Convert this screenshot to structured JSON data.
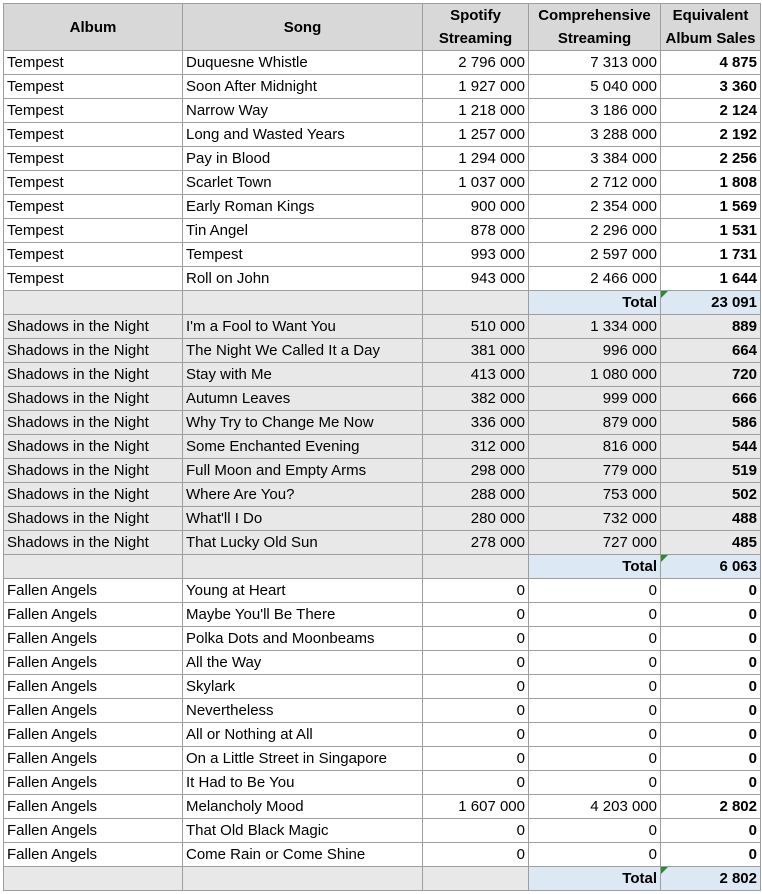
{
  "headers": {
    "album": "Album",
    "song": "Song",
    "spotify_line1": "Spotify",
    "spotify_line2": "Streaming",
    "comp_line1": "Comprehensive",
    "comp_line2": "Streaming",
    "eq_line1": "Equivalent",
    "eq_line2": "Album Sales"
  },
  "groups": [
    {
      "shaded": false,
      "rows": [
        {
          "album": "Tempest",
          "song": "Duquesne Whistle",
          "spotify": "2 796 000",
          "comprehensive": "7 313 000",
          "equivalent": "4 875"
        },
        {
          "album": "Tempest",
          "song": "Soon After Midnight",
          "spotify": "1 927 000",
          "comprehensive": "5 040 000",
          "equivalent": "3 360"
        },
        {
          "album": "Tempest",
          "song": "Narrow Way",
          "spotify": "1 218 000",
          "comprehensive": "3 186 000",
          "equivalent": "2 124"
        },
        {
          "album": "Tempest",
          "song": "Long and Wasted Years",
          "spotify": "1 257 000",
          "comprehensive": "3 288 000",
          "equivalent": "2 192"
        },
        {
          "album": "Tempest",
          "song": "Pay in Blood",
          "spotify": "1 294 000",
          "comprehensive": "3 384 000",
          "equivalent": "2 256"
        },
        {
          "album": "Tempest",
          "song": "Scarlet Town",
          "spotify": "1 037 000",
          "comprehensive": "2 712 000",
          "equivalent": "1 808"
        },
        {
          "album": "Tempest",
          "song": "Early Roman Kings",
          "spotify": "900 000",
          "comprehensive": "2 354 000",
          "equivalent": "1 569"
        },
        {
          "album": "Tempest",
          "song": "Tin Angel",
          "spotify": "878 000",
          "comprehensive": "2 296 000",
          "equivalent": "1 531"
        },
        {
          "album": "Tempest",
          "song": "Tempest",
          "spotify": "993 000",
          "comprehensive": "2 597 000",
          "equivalent": "1 731"
        },
        {
          "album": "Tempest",
          "song": "Roll on John",
          "spotify": "943 000",
          "comprehensive": "2 466 000",
          "equivalent": "1 644"
        }
      ],
      "total_label": "Total",
      "total_value": "23 091"
    },
    {
      "shaded": true,
      "rows": [
        {
          "album": "Shadows in the Night",
          "song": "I'm a Fool to Want You",
          "spotify": "510 000",
          "comprehensive": "1 334 000",
          "equivalent": "889"
        },
        {
          "album": "Shadows in the Night",
          "song": "The Night We Called It a Day",
          "spotify": "381 000",
          "comprehensive": "996 000",
          "equivalent": "664"
        },
        {
          "album": "Shadows in the Night",
          "song": "Stay with Me",
          "spotify": "413 000",
          "comprehensive": "1 080 000",
          "equivalent": "720"
        },
        {
          "album": "Shadows in the Night",
          "song": "Autumn Leaves",
          "spotify": "382 000",
          "comprehensive": "999 000",
          "equivalent": "666"
        },
        {
          "album": "Shadows in the Night",
          "song": "Why Try to Change Me Now",
          "spotify": "336 000",
          "comprehensive": "879 000",
          "equivalent": "586"
        },
        {
          "album": "Shadows in the Night",
          "song": "Some Enchanted Evening",
          "spotify": "312 000",
          "comprehensive": "816 000",
          "equivalent": "544"
        },
        {
          "album": "Shadows in the Night",
          "song": "Full Moon and Empty Arms",
          "spotify": "298 000",
          "comprehensive": "779 000",
          "equivalent": "519"
        },
        {
          "album": "Shadows in the Night",
          "song": "Where Are You?",
          "spotify": "288 000",
          "comprehensive": "753 000",
          "equivalent": "502"
        },
        {
          "album": "Shadows in the Night",
          "song": "What'll I Do",
          "spotify": "280 000",
          "comprehensive": "732 000",
          "equivalent": "488"
        },
        {
          "album": "Shadows in the Night",
          "song": "That Lucky Old Sun",
          "spotify": "278 000",
          "comprehensive": "727 000",
          "equivalent": "485"
        }
      ],
      "total_label": "Total",
      "total_value": "6 063"
    },
    {
      "shaded": false,
      "rows": [
        {
          "album": "Fallen Angels",
          "song": "Young at Heart",
          "spotify": "0",
          "comprehensive": "0",
          "equivalent": "0"
        },
        {
          "album": "Fallen Angels",
          "song": "Maybe You'll Be There",
          "spotify": "0",
          "comprehensive": "0",
          "equivalent": "0"
        },
        {
          "album": "Fallen Angels",
          "song": "Polka Dots and Moonbeams",
          "spotify": "0",
          "comprehensive": "0",
          "equivalent": "0"
        },
        {
          "album": "Fallen Angels",
          "song": "All the Way",
          "spotify": "0",
          "comprehensive": "0",
          "equivalent": "0"
        },
        {
          "album": "Fallen Angels",
          "song": "Skylark",
          "spotify": "0",
          "comprehensive": "0",
          "equivalent": "0"
        },
        {
          "album": "Fallen Angels",
          "song": "Nevertheless",
          "spotify": "0",
          "comprehensive": "0",
          "equivalent": "0"
        },
        {
          "album": "Fallen Angels",
          "song": "All or Nothing at All",
          "spotify": "0",
          "comprehensive": "0",
          "equivalent": "0"
        },
        {
          "album": "Fallen Angels",
          "song": "On a Little Street in Singapore",
          "spotify": "0",
          "comprehensive": "0",
          "equivalent": "0"
        },
        {
          "album": "Fallen Angels",
          "song": "It Had to Be You",
          "spotify": "0",
          "comprehensive": "0",
          "equivalent": "0"
        },
        {
          "album": "Fallen Angels",
          "song": "Melancholy Mood",
          "spotify": "1 607 000",
          "comprehensive": "4 203 000",
          "equivalent": "2 802"
        },
        {
          "album": "Fallen Angels",
          "song": "That Old Black Magic",
          "spotify": "0",
          "comprehensive": "0",
          "equivalent": "0"
        },
        {
          "album": "Fallen Angels",
          "song": "Come Rain or Come Shine",
          "spotify": "0",
          "comprehensive": "0",
          "equivalent": "0"
        }
      ],
      "total_label": "Total",
      "total_value": "2 802"
    }
  ]
}
